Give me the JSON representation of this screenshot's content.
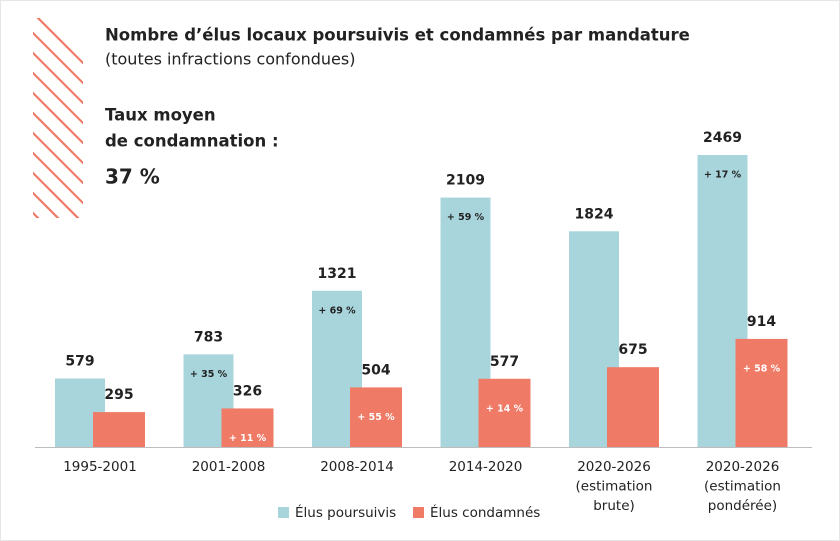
{
  "chart_data": {
    "type": "bar",
    "title": "Nombre d’élus locaux poursuivis et condamnés par mandature",
    "subtitle": "(toutes infractions confondues)",
    "callout": {
      "lines": [
        "Taux moyen",
        "de condamnation :"
      ],
      "value_label": "37 %"
    },
    "categories": [
      [
        "1995-2001"
      ],
      [
        "2001-2008"
      ],
      [
        "2008-2014"
      ],
      [
        "2014-2020"
      ],
      [
        "2020-2026",
        "(estimation",
        "brute)"
      ],
      [
        "2020-2026",
        "(estimation",
        "pondérée)"
      ]
    ],
    "series": [
      {
        "name": "Élus poursuivis",
        "color": "#a8d5dc",
        "values": [
          579,
          783,
          1321,
          2109,
          1824,
          2469
        ],
        "changes": [
          null,
          "+ 35 %",
          "+ 69 %",
          "+ 59 %",
          null,
          "+ 17 %"
        ]
      },
      {
        "name": "Élus condamnés",
        "color": "#ef7a66",
        "values": [
          295,
          326,
          504,
          577,
          675,
          914
        ],
        "changes": [
          null,
          "+ 11 %",
          "+ 55 %",
          "+ 14 %",
          null,
          "+ 58 %"
        ]
      }
    ]
  }
}
